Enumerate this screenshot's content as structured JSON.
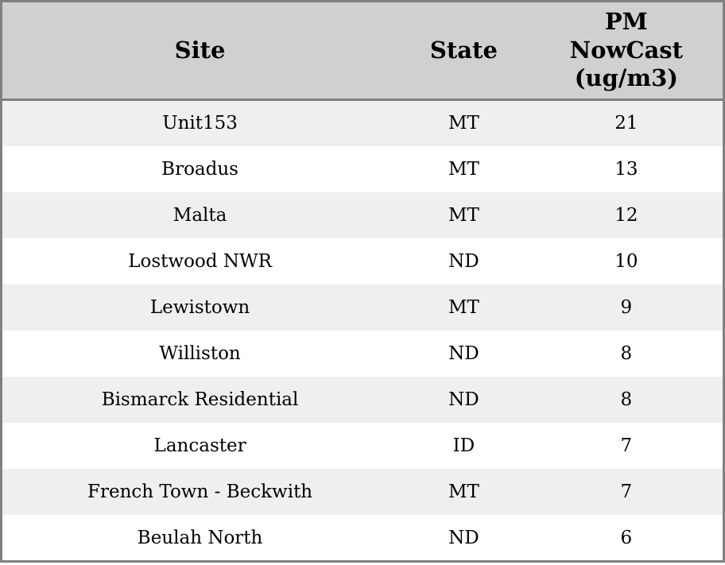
{
  "chart_data": {
    "type": "table",
    "title": "",
    "columns": [
      "Site",
      "State",
      "PM NowCast (ug/m3)"
    ],
    "rows": [
      {
        "site": "Unit153",
        "state": "MT",
        "pm_nowcast": 21
      },
      {
        "site": "Broadus",
        "state": "MT",
        "pm_nowcast": 13
      },
      {
        "site": "Malta",
        "state": "MT",
        "pm_nowcast": 12
      },
      {
        "site": "Lostwood NWR",
        "state": "ND",
        "pm_nowcast": 10
      },
      {
        "site": "Lewistown",
        "state": "MT",
        "pm_nowcast": 9
      },
      {
        "site": "Williston",
        "state": "ND",
        "pm_nowcast": 8
      },
      {
        "site": "Bismarck Residential",
        "state": "ND",
        "pm_nowcast": 8
      },
      {
        "site": "Lancaster",
        "state": "ID",
        "pm_nowcast": 7
      },
      {
        "site": "French Town - Beckwith",
        "state": "MT",
        "pm_nowcast": 7
      },
      {
        "site": "Beulah North",
        "state": "ND",
        "pm_nowcast": 6
      }
    ],
    "layout": {
      "striped_rows": true,
      "text_align": "center"
    }
  },
  "header": {
    "site_label": "Site",
    "state_label": "State",
    "pm_label_full": "PM NowCast (ug/m3)",
    "pm_lines": [
      "PM",
      "NowCast",
      "(ug/m3)"
    ]
  },
  "colors": {
    "header_bg": "#d0d0d0",
    "row_alt_bg": "#efefef",
    "row_bg": "#ffffff",
    "border": "#808080",
    "text": "#000000"
  }
}
